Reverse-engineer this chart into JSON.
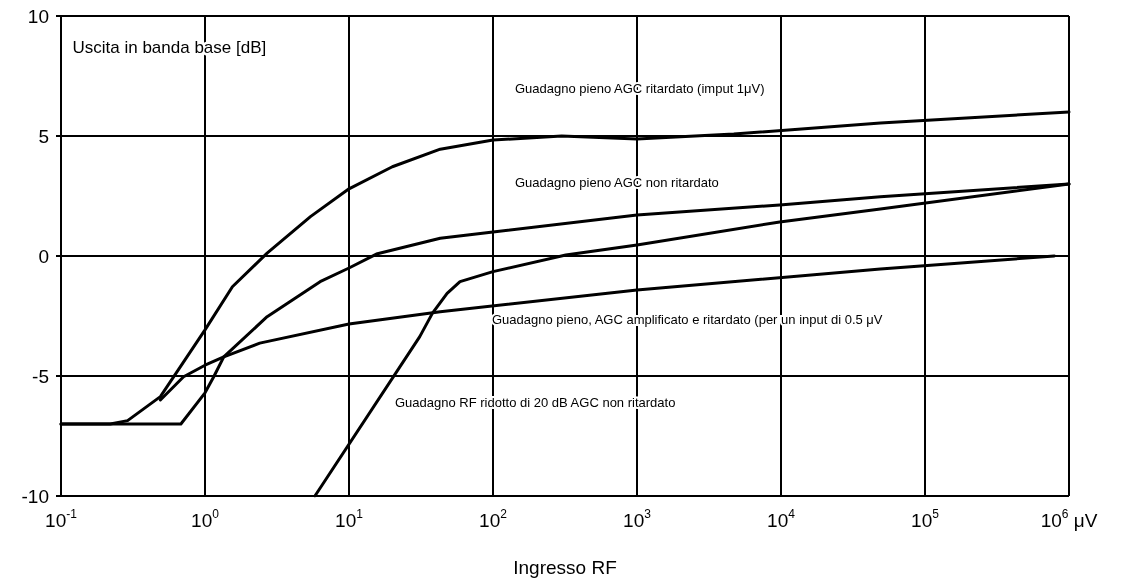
{
  "chart_data": {
    "type": "line",
    "xlabel": "Ingresso RF",
    "ylabel": "Uscita in banda base [dB]",
    "log": "x",
    "xlim": [
      0.1,
      1000000
    ],
    "xticks": [
      {
        "value": 0.1,
        "label": "10$^{-1}$"
      },
      {
        "value": 1,
        "label": "10$^{0}$"
      },
      {
        "value": 10,
        "label": "10$^{1}$"
      },
      {
        "value": 100,
        "label": "10$^{2}$"
      },
      {
        "value": 1000,
        "label": "10$^{3}$"
      },
      {
        "value": 10000,
        "label": "10$^{4}$"
      },
      {
        "value": 100000,
        "label": "10$^{5}$"
      },
      {
        "value": 1000000,
        "label": "10$^{6}$ μV"
      }
    ],
    "ylim": [
      -10,
      10
    ],
    "yticks": [
      -10,
      -5,
      0,
      5,
      10
    ],
    "grid": true,
    "legend": false,
    "marker": "none",
    "line_style": "solid",
    "series": [
      {
        "name": "Guadagno pieno AGC ritardato (imput 1μV)",
        "color": "#000000",
        "x": [
          0.1,
          0.22,
          0.29,
          0.49,
          1,
          1.55,
          2.7,
          5.4,
          10,
          20,
          43,
          100,
          300,
          1000,
          4700,
          49000,
          1000000
        ],
        "values": [
          -7,
          -7,
          -6.86,
          -5.86,
          -3.08,
          -1.28,
          0.12,
          1.64,
          2.8,
          3.72,
          4.45,
          4.83,
          5.0,
          4.88,
          5.08,
          5.54,
          6.0
        ]
      },
      {
        "name": "Guadagno pieno AGC non ritardato",
        "color": "#000000",
        "x": [
          0.1,
          0.68,
          1,
          1.15,
          1.35,
          2.7,
          6.3,
          10,
          15.5,
          43,
          100,
          1000,
          9800,
          49000,
          1000000
        ],
        "values": [
          -7,
          -7,
          -5.7,
          -5.03,
          -4.2,
          -2.53,
          -1.07,
          -0.5,
          0.08,
          0.74,
          1.0,
          1.71,
          2.13,
          2.47,
          3.0
        ]
      },
      {
        "name": "Guadagno pieno, AGC amplificato e ritardato (per un input di 0.5 μV",
        "color": "#000000",
        "x": [
          0.49,
          0.71,
          1,
          1.35,
          2.4,
          10,
          43,
          1000,
          49000,
          790000
        ],
        "values": [
          -6.0,
          -5.03,
          -4.55,
          -4.2,
          -3.63,
          -2.83,
          -2.32,
          -1.42,
          -0.54,
          0
        ]
      },
      {
        "name": "Guadagno RF ridotto di 20 dB AGC non ritardato",
        "color": "#000000",
        "x": [
          5.8,
          31,
          38,
          48,
          59,
          100,
          320,
          1000,
          9800,
          49000,
          1000000
        ],
        "values": [
          -10,
          -3.36,
          -2.38,
          -1.56,
          -1.07,
          -0.65,
          0.04,
          0.46,
          1.42,
          1.96,
          3.0
        ]
      }
    ]
  }
}
